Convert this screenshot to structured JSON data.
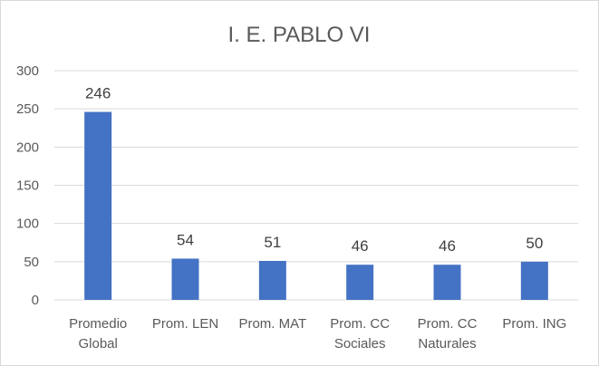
{
  "chart_data": {
    "type": "bar",
    "title": "I. E. PABLO VI",
    "categories": [
      [
        "Promedio",
        "Global"
      ],
      [
        "Prom. LEN"
      ],
      [
        "Prom. MAT"
      ],
      [
        "Prom. CC",
        "Sociales"
      ],
      [
        "Prom. CC",
        "Naturales"
      ],
      [
        "Prom. ING"
      ]
    ],
    "values": [
      246,
      54,
      51,
      46,
      46,
      50
    ],
    "data_labels": [
      "246",
      "54",
      "51",
      "46",
      "46",
      "50"
    ],
    "yticks": [
      "0",
      "50",
      "100",
      "150",
      "200",
      "250",
      "300"
    ],
    "ylim": [
      0,
      300
    ],
    "grid": true,
    "legend": "none",
    "bar_color": "#4472c4",
    "grid_color": "#d9d9d9"
  }
}
